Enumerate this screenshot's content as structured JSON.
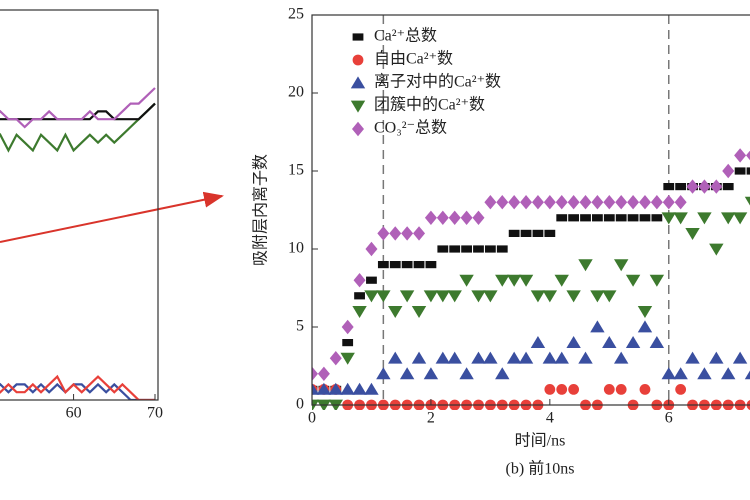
{
  "chart_data": [
    {
      "type": "line",
      "x": [
        49,
        50,
        51,
        52,
        53,
        54,
        55,
        56,
        57,
        58,
        59,
        60,
        61,
        62,
        63,
        64,
        65,
        66,
        67,
        68,
        69,
        70
      ],
      "xlim": [
        49,
        70
      ],
      "xticks": [
        50,
        60,
        70
      ],
      "ylim": [
        0,
        25
      ],
      "series": [
        {
          "color": "#3d7a2e",
          "values": [
            17,
            16.5,
            17,
            16,
            17,
            16.5,
            16,
            17,
            16.5,
            16,
            17,
            16,
            16.5,
            17,
            16.5,
            17,
            16.5,
            17,
            17.5,
            18,
            18.5,
            19
          ]
        },
        {
          "color": "#111111",
          "values": [
            18,
            18,
            18,
            18,
            18,
            18,
            18,
            18,
            18,
            18,
            18,
            18,
            18,
            18,
            18.5,
            18.5,
            18,
            18,
            18,
            18,
            18.5,
            19
          ]
        },
        {
          "color": "#b060b8",
          "values": [
            18,
            18,
            18.5,
            18,
            18,
            17.5,
            18,
            18,
            18.5,
            18,
            18,
            18,
            18,
            18.5,
            18,
            18,
            18,
            18.5,
            19,
            19,
            19.5,
            20
          ]
        },
        {
          "color": "#3a4fa0",
          "values": [
            1,
            0.5,
            1,
            0.5,
            1,
            1,
            0.5,
            1,
            0.5,
            1,
            0.5,
            1,
            1,
            0.5,
            1,
            0.5,
            1,
            0.5,
            0,
            0,
            0,
            0
          ]
        },
        {
          "color": "#e8403a",
          "values": [
            0.5,
            1,
            0.5,
            1,
            0.5,
            0.5,
            1,
            0.5,
            1,
            1.5,
            0.5,
            1,
            0.5,
            1,
            1.5,
            1,
            0.5,
            1,
            0.5,
            0,
            0,
            0
          ]
        }
      ]
    },
    {
      "type": "scatter",
      "x_label": "时间/ns",
      "y_label": "吸附层内离子数",
      "caption": "(b) 前10ns",
      "x": [
        0,
        0.2,
        0.4,
        0.6,
        0.8,
        1,
        1.2,
        1.4,
        1.6,
        1.8,
        2,
        2.2,
        2.4,
        2.6,
        2.8,
        3,
        3.2,
        3.4,
        3.6,
        3.8,
        4,
        4.2,
        4.4,
        4.6,
        4.8,
        5,
        5.2,
        5.4,
        5.6,
        5.8,
        6,
        6.2,
        6.4,
        6.6,
        6.8,
        7,
        7.2,
        7.4
      ],
      "xlim": [
        0,
        7.4
      ],
      "xticks": [
        0,
        2,
        4,
        6
      ],
      "ylim": [
        0,
        25
      ],
      "yticks": [
        0,
        5,
        10,
        15,
        20,
        25
      ],
      "vlines": [
        1.2,
        6
      ],
      "legend": "upper left",
      "series": [
        {
          "name": "Ca²⁺总数",
          "color": "#111111",
          "marker": "square",
          "values": [
            1,
            1,
            1,
            4,
            7,
            8,
            9,
            9,
            9,
            9,
            9,
            10,
            10,
            10,
            10,
            10,
            10,
            11,
            11,
            11,
            11,
            12,
            12,
            12,
            12,
            12,
            12,
            12,
            12,
            12,
            14,
            14,
            14,
            14,
            14,
            14,
            15,
            15
          ]
        },
        {
          "name": "自由Ca²⁺数",
          "color": "#e8403a",
          "marker": "circle",
          "values": [
            1,
            1,
            1,
            0,
            0,
            0,
            0,
            0,
            0,
            0,
            0,
            0,
            0,
            0,
            0,
            0,
            0,
            0,
            0,
            0,
            1,
            1,
            1,
            0,
            0,
            1,
            1,
            0,
            1,
            0,
            0,
            1,
            0,
            0,
            0,
            0,
            0,
            0
          ]
        },
        {
          "name": "离子对中的Ca²⁺数",
          "color": "#3a4fa0",
          "marker": "triangle-up",
          "values": [
            1,
            1,
            1,
            1,
            1,
            1,
            2,
            3,
            2,
            3,
            2,
            3,
            3,
            2,
            3,
            3,
            2,
            3,
            3,
            4,
            3,
            3,
            4,
            3,
            5,
            4,
            3,
            4,
            5,
            4,
            2,
            2,
            3,
            2,
            3,
            2,
            3,
            2
          ]
        },
        {
          "name": "团簇中的Ca²⁺数",
          "color": "#3d7a2e",
          "marker": "triangle-down",
          "values": [
            0,
            0,
            0,
            3,
            6,
            7,
            7,
            6,
            7,
            6,
            7,
            7,
            7,
            8,
            7,
            7,
            8,
            8,
            8,
            7,
            7,
            8,
            7,
            9,
            7,
            7,
            9,
            8,
            6,
            8,
            12,
            12,
            11,
            12,
            10,
            12,
            12,
            13
          ]
        },
        {
          "name": "CO₃²⁻总数",
          "color": "#b060b8",
          "marker": "diamond",
          "values": [
            2,
            2,
            3,
            5,
            8,
            10,
            11,
            11,
            11,
            11,
            12,
            12,
            12,
            12,
            12,
            13,
            13,
            13,
            13,
            13,
            13,
            13,
            13,
            13,
            13,
            13,
            13,
            13,
            13,
            13,
            13,
            13,
            14,
            14,
            14,
            15,
            16,
            16
          ]
        }
      ]
    }
  ]
}
